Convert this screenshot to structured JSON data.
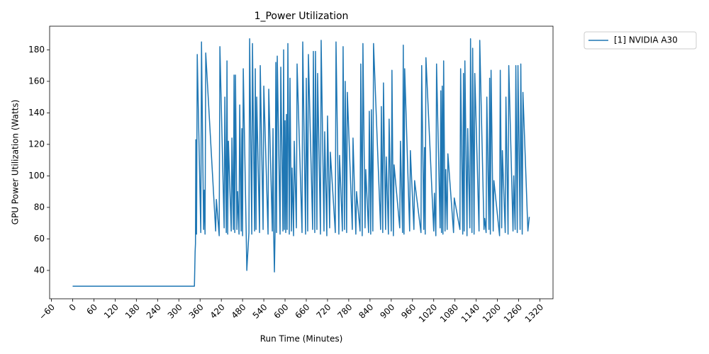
{
  "chart_data": {
    "type": "line",
    "title": "1_Power Utilization",
    "x_label": "Run Time (Minutes)",
    "y_label": "GPU Power Utilization (Watts)",
    "xlim": [
      -65,
      1357
    ],
    "ylim": [
      22,
      195
    ],
    "xticks": [
      {
        "value": -60,
        "label": "−60"
      },
      0,
      60,
      120,
      180,
      240,
      300,
      360,
      420,
      480,
      540,
      600,
      660,
      720,
      780,
      840,
      900,
      960,
      1020,
      1080,
      1140,
      1200,
      1260,
      1320
    ],
    "yticks": [
      40,
      60,
      80,
      100,
      120,
      140,
      160,
      180
    ],
    "legend": "outside upper right",
    "x": [
      0,
      344,
      346,
      347,
      348,
      350,
      352,
      362,
      364,
      370,
      372,
      374,
      376,
      404,
      406,
      414,
      416,
      428,
      430,
      434,
      436,
      438,
      440,
      448,
      450,
      454,
      456,
      458,
      460,
      464,
      466,
      470,
      472,
      476,
      478,
      480,
      482,
      490,
      492,
      498,
      500,
      506,
      508,
      514,
      516,
      518,
      520,
      528,
      530,
      538,
      540,
      552,
      554,
      564,
      566,
      568,
      570,
      572,
      574,
      576,
      578,
      586,
      588,
      594,
      596,
      598,
      600,
      602,
      604,
      606,
      608,
      612,
      614,
      618,
      620,
      624,
      626,
      632,
      634,
      648,
      650,
      658,
      660,
      664,
      666,
      678,
      680,
      684,
      686,
      690,
      692,
      700,
      702,
      710,
      712,
      718,
      720,
      726,
      728,
      742,
      744,
      752,
      754,
      762,
      764,
      768,
      770,
      774,
      776,
      790,
      792,
      800,
      802,
      812,
      814,
      818,
      820,
      826,
      828,
      836,
      838,
      842,
      844,
      848,
      850,
      870,
      872,
      876,
      878,
      884,
      886,
      892,
      894,
      900,
      902,
      906,
      908,
      924,
      926,
      932,
      934,
      936,
      938,
      952,
      954,
      964,
      966,
      984,
      986,
      992,
      994,
      996,
      998,
      1020,
      1022,
      1026,
      1028,
      1038,
      1040,
      1042,
      1044,
      1046,
      1048,
      1052,
      1054,
      1058,
      1060,
      1076,
      1078,
      1094,
      1096,
      1102,
      1104,
      1106,
      1108,
      1114,
      1116,
      1122,
      1124,
      1128,
      1130,
      1134,
      1136,
      1148,
      1150,
      1162,
      1164,
      1168,
      1170,
      1176,
      1178,
      1180,
      1182,
      1188,
      1190,
      1206,
      1208,
      1212,
      1214,
      1222,
      1224,
      1230,
      1232,
      1244,
      1246,
      1250,
      1252,
      1256,
      1258,
      1264,
      1266,
      1270,
      1272,
      1286,
      1290
    ],
    "series": [
      {
        "name": "[1] NVIDIA A30",
        "color": "#1f77b4",
        "values": [
          30,
          30,
          52,
          57,
          123,
          63,
          177,
          64,
          185,
          66,
          91,
          63,
          178,
          65,
          85,
          62,
          182,
          67,
          150,
          64,
          173,
          63,
          122,
          65,
          124,
          66,
          164,
          64,
          164,
          66,
          90,
          63,
          145,
          65,
          130,
          62,
          168,
          67,
          40,
          64,
          187,
          63,
          184,
          65,
          168,
          66,
          150,
          64,
          170,
          66,
          157,
          63,
          155,
          65,
          130,
          62,
          39,
          67,
          172,
          64,
          176,
          63,
          169,
          65,
          180,
          66,
          135,
          64,
          139,
          66,
          184,
          63,
          162,
          65,
          105,
          62,
          122,
          67,
          171,
          64,
          185,
          63,
          162,
          65,
          177,
          66,
          179,
          64,
          179,
          66,
          165,
          63,
          186,
          65,
          128,
          62,
          138,
          67,
          115,
          64,
          185,
          63,
          113,
          65,
          182,
          66,
          160,
          64,
          153,
          66,
          124,
          63,
          90,
          65,
          171,
          62,
          184,
          67,
          104,
          64,
          141,
          63,
          142,
          65,
          184,
          66,
          144,
          64,
          159,
          66,
          112,
          63,
          136,
          65,
          167,
          62,
          107,
          67,
          122,
          64,
          183,
          63,
          168,
          65,
          116,
          66,
          97,
          64,
          170,
          66,
          118,
          63,
          175,
          65,
          89,
          62,
          171,
          67,
          154,
          64,
          157,
          63,
          173,
          65,
          104,
          66,
          114,
          64,
          86,
          66,
          168,
          63,
          165,
          65,
          173,
          62,
          130,
          67,
          187,
          64,
          181,
          63,
          165,
          65,
          186,
          66,
          73,
          64,
          150,
          66,
          162,
          63,
          167,
          65,
          97,
          62,
          167,
          67,
          116,
          64,
          150,
          63,
          170,
          65,
          100,
          66,
          170,
          64,
          170,
          66,
          171,
          63,
          153,
          65,
          74
        ]
      }
    ]
  }
}
